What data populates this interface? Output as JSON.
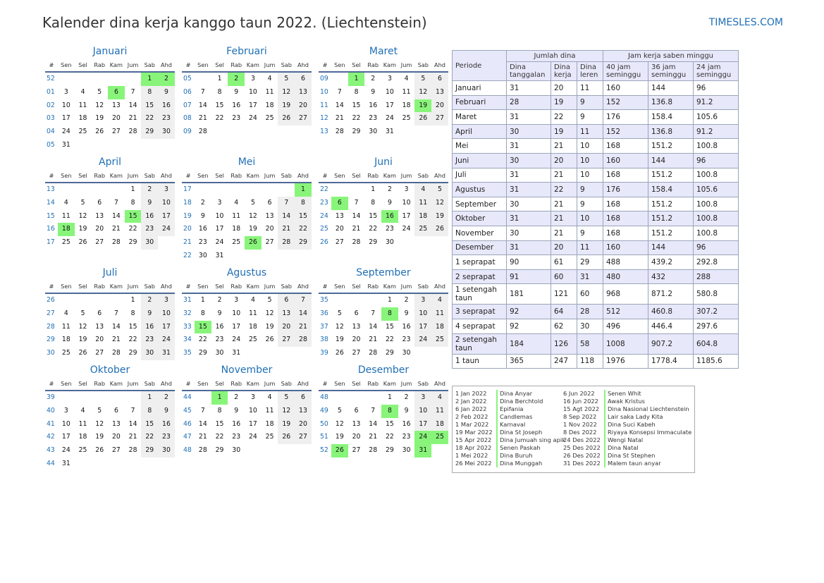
{
  "title": "Kalender dina kerja kanggo taun 2022. (Liechtenstein)",
  "brand": "TIMESLES.COM",
  "calendar": {
    "weekday_headers": [
      "#",
      "Sen",
      "Sel",
      "Rab",
      "Kam",
      "Jum",
      "Sab",
      "Ahd"
    ],
    "months": [
      {
        "name": "Januari",
        "first_weekday": 5,
        "days": 31,
        "first_week": 52,
        "holidays": [
          1,
          2,
          6
        ]
      },
      {
        "name": "Februari",
        "first_weekday": 1,
        "days": 28,
        "first_week": 5,
        "holidays": [
          2
        ]
      },
      {
        "name": "Maret",
        "first_weekday": 1,
        "days": 31,
        "first_week": 9,
        "holidays": [
          1,
          19
        ]
      },
      {
        "name": "April",
        "first_weekday": 4,
        "days": 30,
        "first_week": 13,
        "holidays": [
          15,
          18
        ]
      },
      {
        "name": "Mei",
        "first_weekday": 6,
        "days": 31,
        "first_week": 17,
        "holidays": [
          1,
          26
        ]
      },
      {
        "name": "Juni",
        "first_weekday": 2,
        "days": 30,
        "first_week": 22,
        "holidays": [
          6,
          16
        ]
      },
      {
        "name": "Juli",
        "first_weekday": 4,
        "days": 31,
        "first_week": 26,
        "holidays": []
      },
      {
        "name": "Agustus",
        "first_weekday": 0,
        "days": 31,
        "first_week": 31,
        "holidays": [
          15
        ]
      },
      {
        "name": "September",
        "first_weekday": 3,
        "days": 30,
        "first_week": 35,
        "holidays": [
          8
        ]
      },
      {
        "name": "Oktober",
        "first_weekday": 5,
        "days": 31,
        "first_week": 39,
        "holidays": []
      },
      {
        "name": "November",
        "first_weekday": 1,
        "days": 30,
        "first_week": 44,
        "holidays": [
          1
        ]
      },
      {
        "name": "Desember",
        "first_weekday": 3,
        "days": 31,
        "first_week": 48,
        "holidays": [
          8,
          24,
          25,
          26,
          31
        ]
      }
    ]
  },
  "summary": {
    "period_header": "Periode",
    "days_group": "Jumlah dina",
    "hours_group": "Jam kerja saben minggu",
    "columns": [
      "Dina tanggalan",
      "Dina kerja",
      "Dina leren",
      "40 jam seminggu",
      "36 jam seminggu",
      "24 jam seminggu"
    ],
    "rows": [
      {
        "period": "Januari",
        "values": [
          "31",
          "20",
          "11",
          "160",
          "144",
          "96"
        ]
      },
      {
        "period": "Februari",
        "values": [
          "28",
          "19",
          "9",
          "152",
          "136.8",
          "91.2"
        ]
      },
      {
        "period": "Maret",
        "values": [
          "31",
          "22",
          "9",
          "176",
          "158.4",
          "105.6"
        ]
      },
      {
        "period": "April",
        "values": [
          "30",
          "19",
          "11",
          "152",
          "136.8",
          "91.2"
        ]
      },
      {
        "period": "Mei",
        "values": [
          "31",
          "21",
          "10",
          "168",
          "151.2",
          "100.8"
        ]
      },
      {
        "period": "Juni",
        "values": [
          "30",
          "20",
          "10",
          "160",
          "144",
          "96"
        ]
      },
      {
        "period": "Juli",
        "values": [
          "31",
          "21",
          "10",
          "168",
          "151.2",
          "100.8"
        ]
      },
      {
        "period": "Agustus",
        "values": [
          "31",
          "22",
          "9",
          "176",
          "158.4",
          "105.6"
        ]
      },
      {
        "period": "September",
        "values": [
          "30",
          "21",
          "9",
          "168",
          "151.2",
          "100.8"
        ]
      },
      {
        "period": "Oktober",
        "values": [
          "31",
          "21",
          "10",
          "168",
          "151.2",
          "100.8"
        ]
      },
      {
        "period": "November",
        "values": [
          "30",
          "21",
          "9",
          "168",
          "151.2",
          "100.8"
        ]
      },
      {
        "period": "Desember",
        "values": [
          "31",
          "20",
          "11",
          "160",
          "144",
          "96"
        ]
      },
      {
        "period": "1 seprapat",
        "values": [
          "90",
          "61",
          "29",
          "488",
          "439.2",
          "292.8"
        ]
      },
      {
        "period": "2 seprapat",
        "values": [
          "91",
          "60",
          "31",
          "480",
          "432",
          "288"
        ]
      },
      {
        "period": "1 setengah taun",
        "values": [
          "181",
          "121",
          "60",
          "968",
          "871.2",
          "580.8"
        ],
        "tall": true
      },
      {
        "period": "3 seprapat",
        "values": [
          "92",
          "64",
          "28",
          "512",
          "460.8",
          "307.2"
        ]
      },
      {
        "period": "4 seprapat",
        "values": [
          "92",
          "62",
          "30",
          "496",
          "446.4",
          "297.6"
        ]
      },
      {
        "period": "2 setengah taun",
        "values": [
          "184",
          "126",
          "58",
          "1008",
          "907.2",
          "604.8"
        ],
        "tall": true
      },
      {
        "period": "1 taun",
        "values": [
          "365",
          "247",
          "118",
          "1976",
          "1778.4",
          "1185.6"
        ]
      }
    ]
  },
  "holidays": {
    "left": [
      {
        "date": "1 Jan 2022",
        "name": "Dina Anyar"
      },
      {
        "date": "2 Jan 2022",
        "name": "Dina Berchtold"
      },
      {
        "date": "6 Jan 2022",
        "name": "Epifania"
      },
      {
        "date": "2 Feb 2022",
        "name": "Candlemas"
      },
      {
        "date": "1 Mar 2022",
        "name": "Karnaval"
      },
      {
        "date": "19 Mar 2022",
        "name": "Dina St Joseph"
      },
      {
        "date": "15 Apr 2022",
        "name": "Dina Jumuah sing apik"
      },
      {
        "date": "18 Apr 2022",
        "name": "Senen Paskah"
      },
      {
        "date": "1 Mei 2022",
        "name": "Dina Buruh"
      },
      {
        "date": "26 Mei 2022",
        "name": "Dina Munggah"
      }
    ],
    "right": [
      {
        "date": "6 Jun 2022",
        "name": "Senen Whit"
      },
      {
        "date": "16 Jun 2022",
        "name": "Awak Kristus"
      },
      {
        "date": "15 Agt 2022",
        "name": "Dina Nasional Liechtenstein"
      },
      {
        "date": "8 Sep 2022",
        "name": "Lair saka Lady Kita"
      },
      {
        "date": "1 Nov 2022",
        "name": "Dina Suci Kabeh"
      },
      {
        "date": "8 Des 2022",
        "name": "Riyaya Konsepsi Immaculate"
      },
      {
        "date": "24 Des 2022",
        "name": "Wengi Natal"
      },
      {
        "date": "25 Des 2022",
        "name": "Dina Natal"
      },
      {
        "date": "26 Des 2022",
        "name": "Dina St Stephen"
      },
      {
        "date": "31 Des 2022",
        "name": "Malem taun anyar"
      }
    ]
  }
}
